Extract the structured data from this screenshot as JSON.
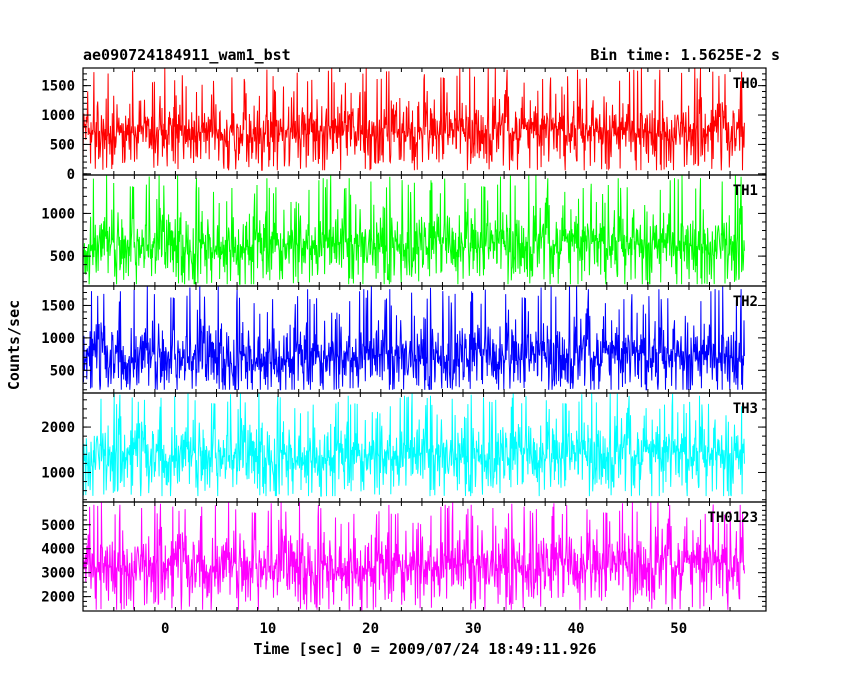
{
  "chart_data": {
    "type": "line",
    "title": "ae090724184911_wam1_bst",
    "subtitle": "Bin time: 1.5625E-2 s",
    "xlabel": "Time [sec] 0 = 2009/07/24 18:49:11.926",
    "ylabel": "Counts/sec",
    "xlim": [
      -8.0,
      58.5
    ],
    "x_data_range": [
      -8.0,
      56.4
    ],
    "x_ticks": [
      0,
      10,
      20,
      30,
      40,
      50
    ],
    "panels": [
      {
        "name": "TH0",
        "color": "#ff0000",
        "ylim": [
          -20,
          1800
        ],
        "yticks": [
          0,
          500,
          1000,
          1500
        ],
        "mean": 720,
        "noise_sd": 260,
        "min": 60,
        "max": 1820
      },
      {
        "name": "TH1",
        "color": "#00ff00",
        "ylim": [
          150,
          1450
        ],
        "yticks": [
          500,
          1000
        ],
        "mean": 640,
        "noise_sd": 200,
        "min": 170,
        "max": 1450
      },
      {
        "name": "TH2",
        "color": "#0000ff",
        "ylim": [
          150,
          1800
        ],
        "yticks": [
          500,
          1000,
          1500
        ],
        "mean": 720,
        "noise_sd": 270,
        "min": 200,
        "max": 1800
      },
      {
        "name": "TH3",
        "color": "#00ffff",
        "ylim": [
          350,
          2750
        ],
        "yticks": [
          1000,
          2000
        ],
        "mean": 1390,
        "noise_sd": 380,
        "min": 480,
        "max": 2750
      },
      {
        "name": "TH0123",
        "color": "#ff00ff",
        "ylim": [
          1400,
          5950
        ],
        "yticks": [
          2000,
          3000,
          4000,
          5000
        ],
        "mean": 3300,
        "noise_sd": 720,
        "min": 1450,
        "max": 5950
      }
    ]
  }
}
